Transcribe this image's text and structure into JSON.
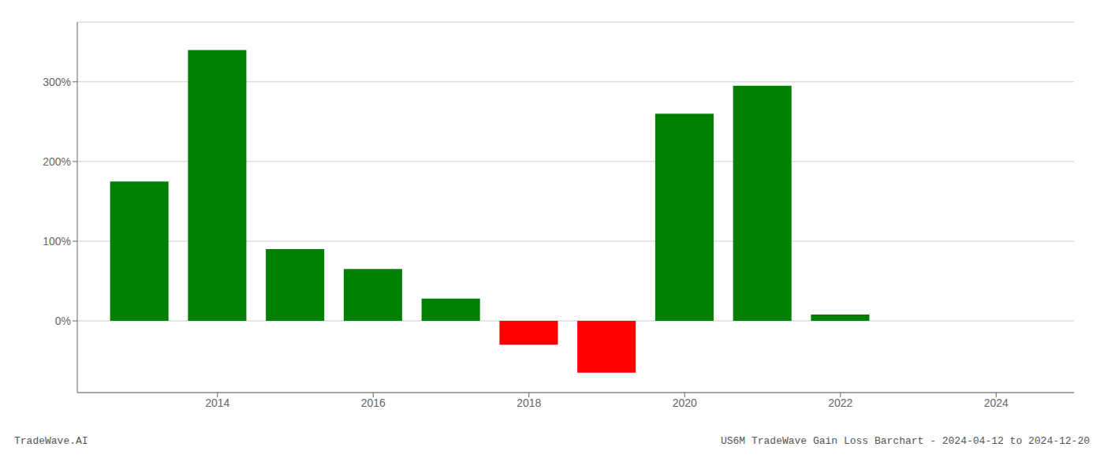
{
  "chart_data": {
    "type": "bar",
    "title": "US6M TradeWave Gain Loss Barchart - 2024-04-12 to 2024-12-20",
    "annotations": [
      "TradeWave.AI"
    ],
    "x": [
      2013,
      2014,
      2015,
      2016,
      2017,
      2018,
      2019,
      2020,
      2021,
      2022,
      2023
    ],
    "values": [
      175,
      340,
      90,
      65,
      28,
      -30,
      -65,
      260,
      295,
      8,
      0
    ],
    "colors": [
      "#008000",
      "#008000",
      "#008000",
      "#008000",
      "#008000",
      "#ff0000",
      "#ff0000",
      "#008000",
      "#008000",
      "#008000",
      "#008000"
    ],
    "xlim": [
      2012.2,
      2025.0
    ],
    "xticks": [
      2014,
      2016,
      2018,
      2020,
      2022,
      2024
    ],
    "ylim": [
      -90,
      375
    ],
    "yticks": [
      {
        "value": 0,
        "label": "0%"
      },
      {
        "value": 100,
        "label": "100%"
      },
      {
        "value": 200,
        "label": "200%"
      },
      {
        "value": 300,
        "label": "300%"
      }
    ],
    "grid": true
  }
}
